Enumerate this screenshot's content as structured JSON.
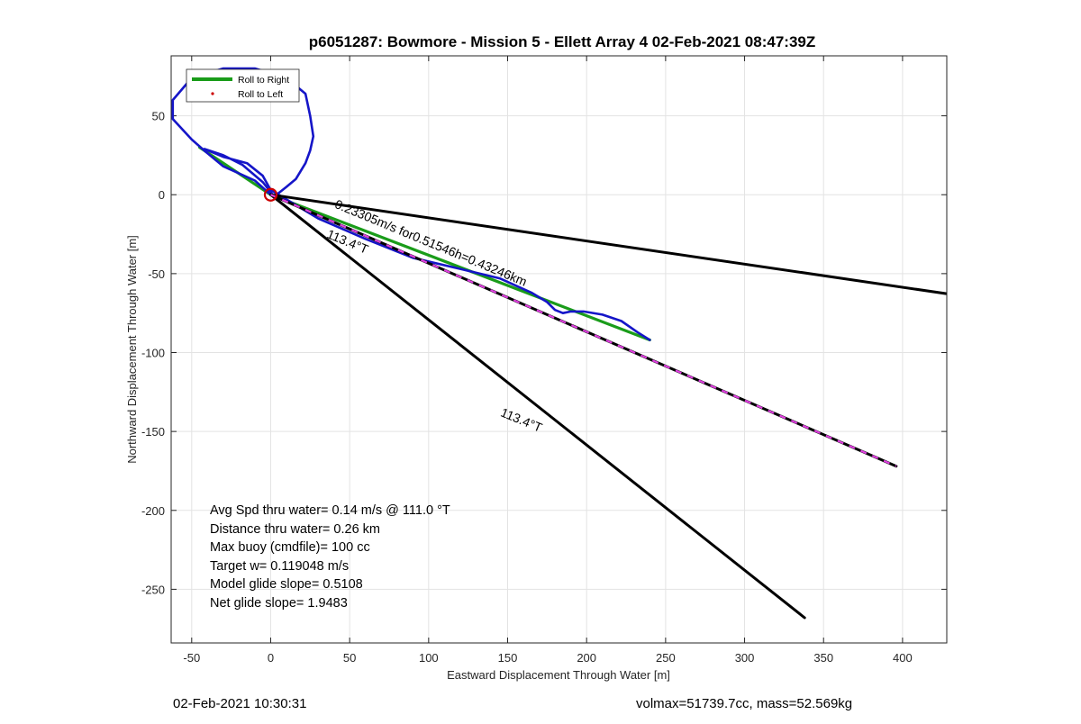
{
  "chart_data": {
    "type": "line",
    "title": "p6051287: Bowmore - Mission 5 - Ellett Array 4 02-Feb-2021 08:47:39Z",
    "xlabel": "Eastward Displacement Through Water [m]",
    "ylabel": "Northward Displacement Through Water [m]",
    "xlim": [
      -63,
      428
    ],
    "ylim": [
      -284,
      88
    ],
    "xticks": [
      -50,
      0,
      50,
      100,
      150,
      200,
      250,
      300,
      350,
      400
    ],
    "yticks": [
      50,
      0,
      -50,
      -100,
      -150,
      -200,
      -250
    ],
    "xtick_labels": [
      "-50",
      "0",
      "50",
      "100",
      "150",
      "200",
      "250",
      "300",
      "350",
      "400"
    ],
    "ytick_labels": [
      "50",
      "0",
      "-50",
      "-100",
      "-150",
      "-200",
      "-250"
    ],
    "grid": true,
    "legend_position": "top-left",
    "legend": [
      {
        "label": "Roll to Right",
        "color": "#1a9c1a",
        "style": "line"
      },
      {
        "label": "Roll to Left",
        "color": "#cc0000",
        "style": "dot"
      }
    ],
    "series": [
      {
        "name": "Roll to Right",
        "color": "#1a9c1a",
        "x": [
          0,
          -45,
          0,
          240
        ],
        "y": [
          0,
          30,
          0,
          -92
        ]
      },
      {
        "name": "",
        "color": "#1515c8",
        "x": [
          0,
          -10,
          -30,
          -42,
          -50,
          -62,
          -62,
          -50,
          -30,
          -10,
          10,
          22,
          25,
          27,
          25,
          22,
          16,
          10,
          5,
          2,
          -5,
          -18,
          -30,
          -42,
          -30,
          -15,
          -5,
          0,
          30,
          60,
          90,
          120,
          145,
          165,
          175,
          180,
          185,
          190,
          198,
          210,
          222,
          232,
          240
        ],
        "y": [
          0,
          9,
          18,
          28,
          35,
          48,
          60,
          74,
          80,
          80,
          74,
          64,
          50,
          37,
          28,
          20,
          10,
          5,
          1,
          -1,
          8,
          19,
          25,
          29,
          24,
          20,
          12,
          3,
          -15,
          -28,
          -40,
          -47,
          -53,
          -62,
          -68,
          -73,
          -75,
          -74,
          -74,
          -76,
          -80,
          -87,
          -92
        ]
      },
      {
        "name": "",
        "color": "#000000",
        "x": [
          0,
          430
        ],
        "y": [
          0,
          -63
        ]
      },
      {
        "name": "",
        "color": "#000000",
        "x": [
          0,
          338
        ],
        "y": [
          0,
          -268
        ]
      },
      {
        "name": "",
        "color": "#000000",
        "dash_color": "#e040e0",
        "x": [
          0,
          396
        ],
        "y": [
          0,
          -172
        ]
      }
    ],
    "markers": [
      {
        "name": "start-circle",
        "x": 0,
        "y": 0,
        "color": "#cc0000"
      }
    ],
    "annotations": [
      {
        "text": "0.23305m/s for0.51546h=0.43246km",
        "x": 40,
        "y": -8,
        "rotation": 22.5
      },
      {
        "text": "113.4°T",
        "x": 35,
        "y": -27,
        "rotation": 22.5
      },
      {
        "text": "113.4°T",
        "x": 145,
        "y": -140,
        "rotation": 22.5
      }
    ],
    "stats": [
      "Avg Spd thru water=  0.14 m/s @ 111.0 °T",
      "Distance thru water=  0.26 km",
      "Max buoy (cmdfile)= 100 cc",
      "Target w= 0.119048 m/s",
      "Model glide slope= 0.5108",
      "Net glide slope= 1.9483"
    ]
  },
  "footer": {
    "timestamp": "02-Feb-2021 10:30:31",
    "summary": "volmax=51739.7cc, mass=52.569kg"
  }
}
